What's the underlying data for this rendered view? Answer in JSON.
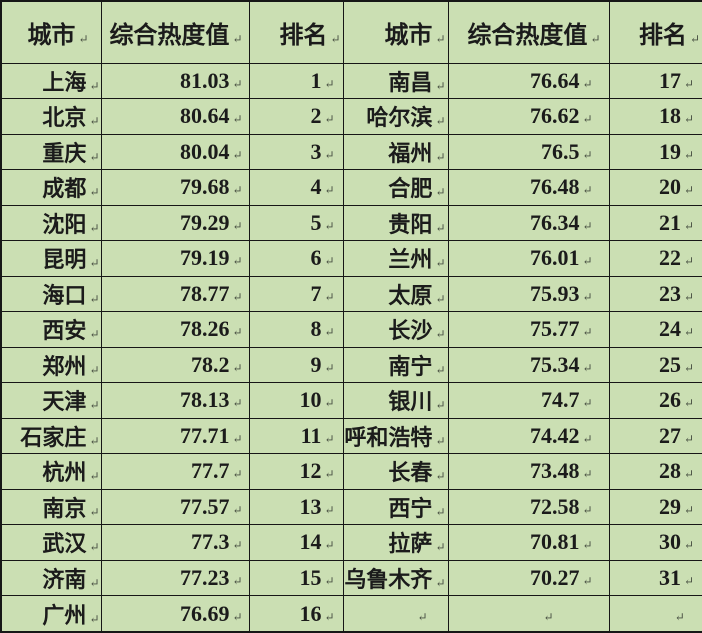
{
  "table": {
    "title_semantic": "city-composite-heat-ranking-table",
    "marker": "↵",
    "colors": {
      "cell_bg": "#cbdfb3",
      "border": "#161616",
      "text": "#1b1b1b"
    },
    "header_labels": [
      "城市",
      "综合热度值",
      "排名",
      "城市",
      "综合热度值",
      "排名"
    ],
    "rows": [
      {
        "left": {
          "city": "上海",
          "value": "81.03",
          "rank": "1"
        },
        "right": {
          "city": "南昌",
          "value": "76.64",
          "rank": "17"
        }
      },
      {
        "left": {
          "city": "北京",
          "value": "80.64",
          "rank": "2"
        },
        "right": {
          "city": "哈尔滨",
          "value": "76.62",
          "rank": "18"
        }
      },
      {
        "left": {
          "city": "重庆",
          "value": "80.04",
          "rank": "3"
        },
        "right": {
          "city": "福州",
          "value": "76.5",
          "rank": "19"
        }
      },
      {
        "left": {
          "city": "成都",
          "value": "79.68",
          "rank": "4"
        },
        "right": {
          "city": "合肥",
          "value": "76.48",
          "rank": "20"
        }
      },
      {
        "left": {
          "city": "沈阳",
          "value": "79.29",
          "rank": "5"
        },
        "right": {
          "city": "贵阳",
          "value": "76.34",
          "rank": "21"
        }
      },
      {
        "left": {
          "city": "昆明",
          "value": "79.19",
          "rank": "6"
        },
        "right": {
          "city": "兰州",
          "value": "76.01",
          "rank": "22"
        }
      },
      {
        "left": {
          "city": "海口",
          "value": "78.77",
          "rank": "7"
        },
        "right": {
          "city": "太原",
          "value": "75.93",
          "rank": "23"
        }
      },
      {
        "left": {
          "city": "西安",
          "value": "78.26",
          "rank": "8"
        },
        "right": {
          "city": "长沙",
          "value": "75.77",
          "rank": "24"
        }
      },
      {
        "left": {
          "city": "郑州",
          "value": "78.2",
          "rank": "9"
        },
        "right": {
          "city": "南宁",
          "value": "75.34",
          "rank": "25"
        }
      },
      {
        "left": {
          "city": "天津",
          "value": "78.13",
          "rank": "10"
        },
        "right": {
          "city": "银川",
          "value": "74.7",
          "rank": "26"
        }
      },
      {
        "left": {
          "city": "石家庄",
          "value": "77.71",
          "rank": "11"
        },
        "right": {
          "city": "呼和浩特",
          "value": "74.42",
          "rank": "27"
        }
      },
      {
        "left": {
          "city": "杭州",
          "value": "77.7",
          "rank": "12"
        },
        "right": {
          "city": "长春",
          "value": "73.48",
          "rank": "28"
        }
      },
      {
        "left": {
          "city": "南京",
          "value": "77.57",
          "rank": "13"
        },
        "right": {
          "city": "西宁",
          "value": "72.58",
          "rank": "29"
        }
      },
      {
        "left": {
          "city": "武汉",
          "value": "77.3",
          "rank": "14"
        },
        "right": {
          "city": "拉萨",
          "value": "70.81",
          "rank": "30"
        }
      },
      {
        "left": {
          "city": "济南",
          "value": "77.23",
          "rank": "15"
        },
        "right": {
          "city": "乌鲁木齐",
          "value": "70.27",
          "rank": "31"
        }
      },
      {
        "left": {
          "city": "广州",
          "value": "76.69",
          "rank": "16"
        },
        "right": {
          "city": "",
          "value": "",
          "rank": ""
        }
      }
    ]
  }
}
